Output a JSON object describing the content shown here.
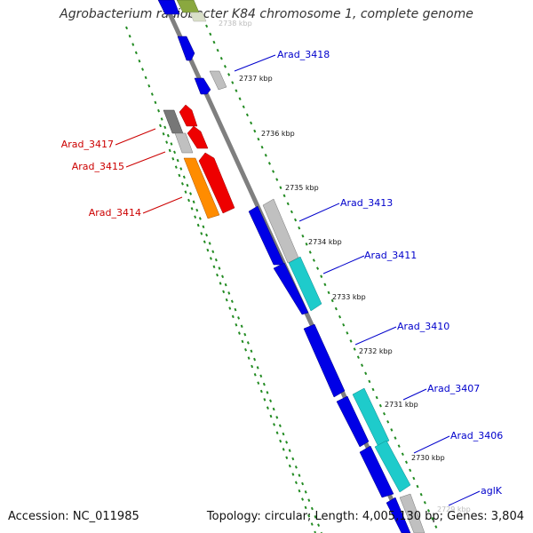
{
  "title": "Agrobacterium radiobacter K84 chromosome 1, complete genome",
  "footer": {
    "accession": "Accession: NC_011985",
    "summary": "Topology: circular; Length: 4,005,130 bp; Genes: 3,804"
  },
  "scale": {
    "ticks": [
      "2738 kbp",
      "2737 kbp",
      "2736 kbp",
      "2735 kbp",
      "2734 kbp",
      "2733 kbp",
      "2732 kbp",
      "2731 kbp",
      "2730 kbp",
      "2729 kbp"
    ]
  },
  "gene_labels": [
    {
      "text": "Arad_3418",
      "strand": "forward"
    },
    {
      "text": "Arad_3417",
      "strand": "reverse"
    },
    {
      "text": "Arad_3415",
      "strand": "reverse"
    },
    {
      "text": "Arad_3414",
      "strand": "reverse"
    },
    {
      "text": "Arad_3413",
      "strand": "forward"
    },
    {
      "text": "Arad_3411",
      "strand": "forward"
    },
    {
      "text": "Arad_3410",
      "strand": "forward"
    },
    {
      "text": "Arad_3407",
      "strand": "forward"
    },
    {
      "text": "Arad_3406",
      "strand": "forward"
    },
    {
      "text": "aglK",
      "strand": "forward"
    }
  ],
  "colors": {
    "backbone": "#7f7f7f",
    "forward_gene": "#0000e6",
    "reverse_gene": "#ee0000",
    "label_forward": "#0000cc",
    "label_reverse": "#cc0000",
    "dotted_guide": "#228b22",
    "cyan_gene": "#1ecbcb",
    "orange_gene": "#ff8c00",
    "gray_gene": "#c0c0c0",
    "dark_gray_gene": "#777777",
    "olive_gene": "#8aa83f"
  }
}
